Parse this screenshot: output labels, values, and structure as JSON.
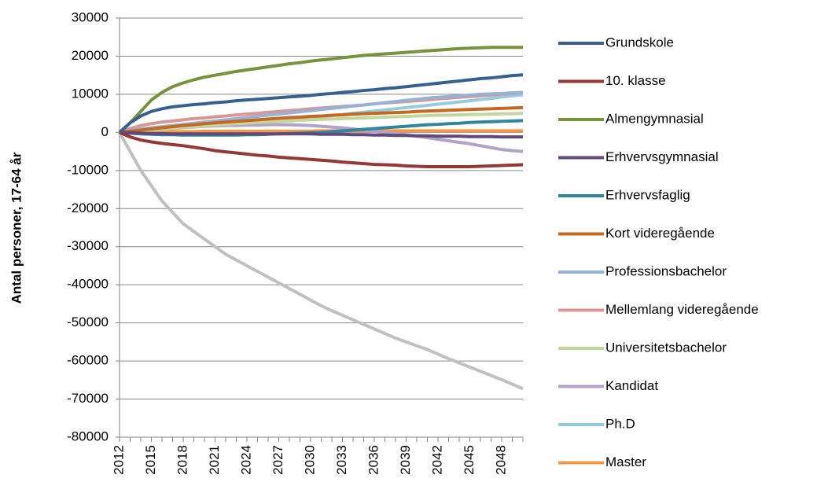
{
  "chart_data": {
    "type": "line",
    "y_label": "Antal personer, 17-64 år",
    "x": [
      2012,
      2013,
      2014,
      2015,
      2016,
      2017,
      2018,
      2019,
      2020,
      2021,
      2022,
      2023,
      2024,
      2025,
      2026,
      2027,
      2028,
      2029,
      2030,
      2031,
      2032,
      2033,
      2034,
      2035,
      2036,
      2037,
      2038,
      2039,
      2040,
      2041,
      2042,
      2043,
      2044,
      2045,
      2046,
      2047,
      2048,
      2049,
      2050
    ],
    "xlim": [
      2012,
      2050
    ],
    "xticks": [
      2012,
      2015,
      2018,
      2021,
      2024,
      2027,
      2030,
      2033,
      2036,
      2039,
      2042,
      2045,
      2048
    ],
    "ylim": [
      -80000,
      30000
    ],
    "yticks": [
      -80000,
      -70000,
      -60000,
      -50000,
      -40000,
      -30000,
      -20000,
      -10000,
      0,
      10000,
      20000,
      30000
    ],
    "grid": true,
    "legend": "right",
    "series": [
      {
        "name": "Grundskole",
        "color": "#376092",
        "values": [
          0,
          2500,
          4300,
          5500,
          6200,
          6700,
          7000,
          7300,
          7500,
          7800,
          8000,
          8300,
          8500,
          8700,
          8900,
          9100,
          9300,
          9500,
          9700,
          10000,
          10200,
          10500,
          10700,
          11000,
          11200,
          11500,
          11700,
          12000,
          12300,
          12600,
          12900,
          13200,
          13500,
          13800,
          14100,
          14300,
          14600,
          14900,
          15100
        ]
      },
      {
        "name": "10. klasse",
        "color": "#953735",
        "values": [
          0,
          -1200,
          -2000,
          -2500,
          -2900,
          -3200,
          -3500,
          -3900,
          -4300,
          -4800,
          -5100,
          -5400,
          -5700,
          -6000,
          -6200,
          -6500,
          -6700,
          -6900,
          -7100,
          -7300,
          -7500,
          -7800,
          -8000,
          -8200,
          -8400,
          -8500,
          -8600,
          -8800,
          -8900,
          -9000,
          -9000,
          -9000,
          -9000,
          -9000,
          -8900,
          -8800,
          -8700,
          -8600,
          -8500
        ]
      },
      {
        "name": "Almengymnasial",
        "color": "#77933c",
        "values": [
          0,
          2500,
          5500,
          8500,
          10500,
          12000,
          13000,
          13800,
          14500,
          15000,
          15500,
          16000,
          16400,
          16800,
          17200,
          17600,
          18000,
          18300,
          18700,
          19000,
          19300,
          19600,
          19900,
          20200,
          20400,
          20600,
          20800,
          21000,
          21200,
          21400,
          21600,
          21800,
          22000,
          22100,
          22200,
          22300,
          22300,
          22300,
          22300
        ]
      },
      {
        "name": "Erhvervsgymnasial",
        "color": "#604a7b",
        "values": [
          0,
          -100,
          -200,
          -300,
          -300,
          -400,
          -400,
          -400,
          -400,
          -400,
          -400,
          -400,
          -400,
          -400,
          -400,
          -400,
          -400,
          -400,
          -400,
          -500,
          -500,
          -500,
          -600,
          -600,
          -700,
          -700,
          -800,
          -800,
          -900,
          -900,
          -1000,
          -1000,
          -1000,
          -1100,
          -1100,
          -1100,
          -1200,
          -1200,
          -1200
        ]
      },
      {
        "name": "Erhvervsfaglig",
        "color": "#31859c",
        "values": [
          0,
          -200,
          -400,
          -500,
          -600,
          -600,
          -700,
          -700,
          -700,
          -700,
          -700,
          -700,
          -600,
          -600,
          -500,
          -400,
          -300,
          -200,
          -100,
          0,
          200,
          400,
          600,
          800,
          1000,
          1200,
          1400,
          1600,
          1800,
          2000,
          2100,
          2300,
          2400,
          2600,
          2700,
          2800,
          2900,
          3000,
          3100
        ]
      },
      {
        "name": "Kort videregående",
        "color": "#c8671f",
        "values": [
          0,
          300,
          600,
          900,
          1200,
          1500,
          1800,
          2000,
          2300,
          2500,
          2700,
          2900,
          3100,
          3300,
          3500,
          3700,
          3900,
          4000,
          4200,
          4300,
          4500,
          4600,
          4800,
          4900,
          5000,
          5100,
          5200,
          5300,
          5500,
          5600,
          5700,
          5800,
          5900,
          6000,
          6100,
          6200,
          6300,
          6400,
          6500
        ]
      },
      {
        "name": "Professionsbachelor",
        "color": "#95b3d7",
        "values": [
          0,
          500,
          900,
          1200,
          1500,
          1800,
          2100,
          2400,
          2700,
          3000,
          3300,
          3600,
          3900,
          4200,
          4500,
          4800,
          5100,
          5400,
          5700,
          6000,
          6300,
          6600,
          6900,
          7200,
          7500,
          7800,
          8100,
          8400,
          8700,
          9000,
          9200,
          9400,
          9600,
          9800,
          10000,
          10100,
          10200,
          10400,
          10500
        ]
      },
      {
        "name": "Mellemlang videregående",
        "color": "#d99694",
        "values": [
          0,
          1000,
          1800,
          2300,
          2700,
          3000,
          3300,
          3600,
          3800,
          4100,
          4300,
          4600,
          4800,
          5000,
          5300,
          5500,
          5700,
          5900,
          6200,
          6400,
          6600,
          6800,
          7000,
          7200,
          7500,
          7700,
          7900,
          8100,
          8300,
          8500,
          8800,
          9000,
          9200,
          9400,
          9600,
          9800,
          10000,
          10200,
          10500
        ]
      },
      {
        "name": "Universitetsbachelor",
        "color": "#c3d69b",
        "values": [
          0,
          300,
          500,
          700,
          900,
          1100,
          1300,
          1500,
          1700,
          1900,
          2100,
          2300,
          2400,
          2600,
          2800,
          2900,
          3000,
          3200,
          3300,
          3400,
          3500,
          3600,
          3700,
          3800,
          3900,
          4000,
          4100,
          4200,
          4300,
          4400,
          4500,
          4500,
          4600,
          4700,
          4700,
          4800,
          4900,
          4900,
          5000
        ]
      },
      {
        "name": "Kandidat",
        "color": "#b3a2c7",
        "values": [
          0,
          400,
          700,
          900,
          1100,
          1300,
          1400,
          1500,
          1600,
          1700,
          1800,
          1800,
          1900,
          1900,
          2000,
          2000,
          2000,
          1900,
          1800,
          1600,
          1400,
          1200,
          900,
          600,
          300,
          0,
          -300,
          -600,
          -1000,
          -1400,
          -1800,
          -2200,
          -2600,
          -3000,
          -3500,
          -4000,
          -4500,
          -4800,
          -5000
        ]
      },
      {
        "name": "Ph.D",
        "color": "#93cddd",
        "values": [
          0,
          200,
          400,
          600,
          800,
          1000,
          1200,
          1400,
          1600,
          1800,
          2000,
          2200,
          2400,
          2700,
          2900,
          3100,
          3300,
          3600,
          3800,
          4100,
          4400,
          4700,
          5000,
          5300,
          5600,
          5900,
          6200,
          6500,
          6800,
          7100,
          7400,
          7700,
          8000,
          8300,
          8600,
          8900,
          9300,
          9600,
          9900
        ]
      },
      {
        "name": "Master",
        "color": "#f79646",
        "values": [
          0,
          100,
          100,
          200,
          200,
          200,
          200,
          200,
          300,
          300,
          300,
          300,
          300,
          300,
          300,
          300,
          300,
          300,
          300,
          400,
          400,
          400,
          400,
          400,
          400,
          400,
          400,
          400,
          400,
          400,
          400,
          400,
          400,
          400,
          400,
          400,
          400,
          400,
          400
        ]
      },
      {
        "color": "#c0c0c0",
        "values": [
          0,
          -5000,
          -10000,
          -14000,
          -18000,
          -21000,
          -24000,
          -26000,
          -28000,
          -30000,
          -32000,
          -33500,
          -35000,
          -36500,
          -38000,
          -39500,
          -41000,
          -42500,
          -44000,
          -45500,
          -46800,
          -48000,
          -49200,
          -50400,
          -51600,
          -52800,
          -54000,
          -55000,
          -56000,
          -57000,
          -58200,
          -59400,
          -60500,
          -61600,
          -62700,
          -63800,
          -64900,
          -66100,
          -67300
        ]
      }
    ]
  }
}
